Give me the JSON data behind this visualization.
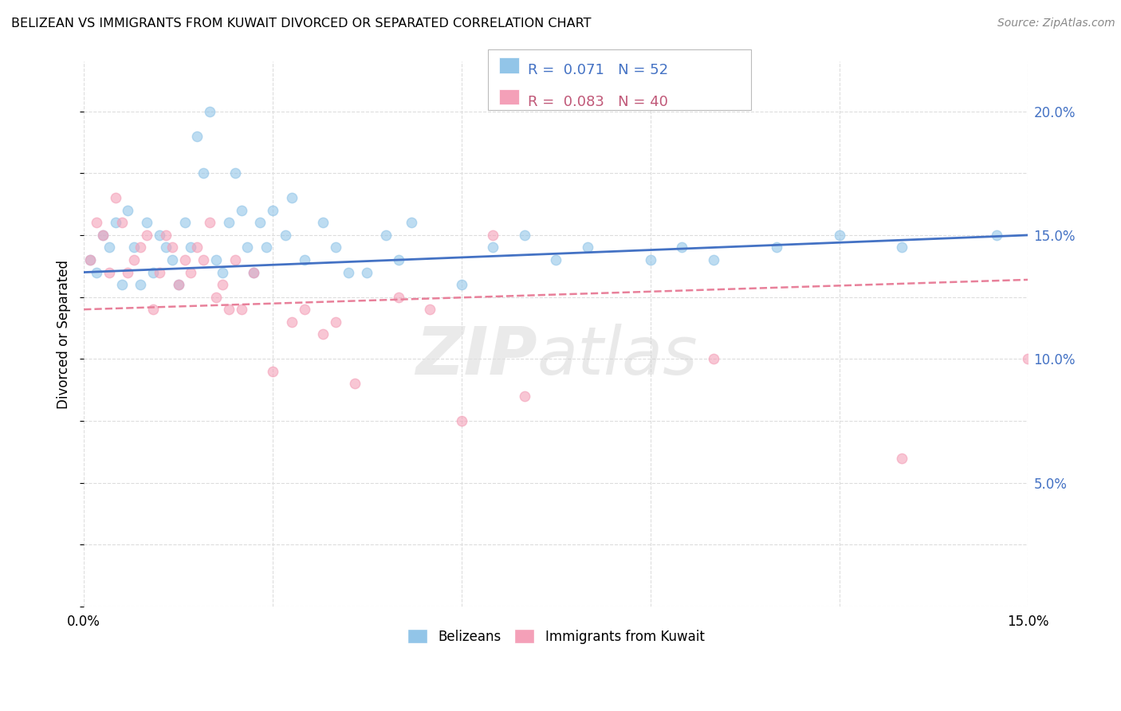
{
  "title": "BELIZEAN VS IMMIGRANTS FROM KUWAIT DIVORCED OR SEPARATED CORRELATION CHART",
  "source_text": "Source: ZipAtlas.com",
  "ylabel": "Divorced or Separated",
  "xlim": [
    0.0,
    0.15
  ],
  "ylim": [
    0.0,
    0.22
  ],
  "x_ticks": [
    0.0,
    0.03,
    0.06,
    0.09,
    0.12,
    0.15
  ],
  "x_tick_labels": [
    "0.0%",
    "",
    "",
    "",
    "",
    "15.0%"
  ],
  "y_ticks_right": [
    0.05,
    0.1,
    0.15,
    0.2
  ],
  "y_tick_labels_right": [
    "5.0%",
    "10.0%",
    "15.0%",
    "20.0%"
  ],
  "belizean_color": "#92C5E8",
  "kuwait_color": "#F4A0B8",
  "trend_blue": "#4472C4",
  "trend_pink": "#E8809A",
  "legend_label_1": "Belizeans",
  "legend_label_2": "Immigrants from Kuwait",
  "belizean_x": [
    0.001,
    0.002,
    0.003,
    0.004,
    0.005,
    0.006,
    0.007,
    0.008,
    0.009,
    0.01,
    0.011,
    0.012,
    0.013,
    0.014,
    0.015,
    0.016,
    0.017,
    0.018,
    0.019,
    0.02,
    0.021,
    0.022,
    0.023,
    0.024,
    0.025,
    0.026,
    0.027,
    0.028,
    0.029,
    0.03,
    0.032,
    0.033,
    0.035,
    0.038,
    0.04,
    0.042,
    0.045,
    0.048,
    0.05,
    0.052,
    0.06,
    0.065,
    0.07,
    0.075,
    0.08,
    0.09,
    0.095,
    0.1,
    0.11,
    0.12,
    0.13,
    0.145
  ],
  "belizean_y": [
    0.14,
    0.135,
    0.15,
    0.145,
    0.155,
    0.13,
    0.16,
    0.145,
    0.13,
    0.155,
    0.135,
    0.15,
    0.145,
    0.14,
    0.13,
    0.155,
    0.145,
    0.19,
    0.175,
    0.2,
    0.14,
    0.135,
    0.155,
    0.175,
    0.16,
    0.145,
    0.135,
    0.155,
    0.145,
    0.16,
    0.15,
    0.165,
    0.14,
    0.155,
    0.145,
    0.135,
    0.135,
    0.15,
    0.14,
    0.155,
    0.13,
    0.145,
    0.15,
    0.14,
    0.145,
    0.14,
    0.145,
    0.14,
    0.145,
    0.15,
    0.145,
    0.15
  ],
  "kuwait_x": [
    0.001,
    0.002,
    0.003,
    0.004,
    0.005,
    0.006,
    0.007,
    0.008,
    0.009,
    0.01,
    0.011,
    0.012,
    0.013,
    0.014,
    0.015,
    0.016,
    0.017,
    0.018,
    0.019,
    0.02,
    0.021,
    0.022,
    0.023,
    0.024,
    0.025,
    0.027,
    0.03,
    0.033,
    0.035,
    0.038,
    0.04,
    0.043,
    0.05,
    0.055,
    0.06,
    0.065,
    0.07,
    0.1,
    0.13,
    0.15
  ],
  "kuwait_y": [
    0.14,
    0.155,
    0.15,
    0.135,
    0.165,
    0.155,
    0.135,
    0.14,
    0.145,
    0.15,
    0.12,
    0.135,
    0.15,
    0.145,
    0.13,
    0.14,
    0.135,
    0.145,
    0.14,
    0.155,
    0.125,
    0.13,
    0.12,
    0.14,
    0.12,
    0.135,
    0.095,
    0.115,
    0.12,
    0.11,
    0.115,
    0.09,
    0.125,
    0.12,
    0.075,
    0.15,
    0.085,
    0.1,
    0.06,
    0.1
  ],
  "trend_blue_start_y": 0.135,
  "trend_blue_end_y": 0.15,
  "trend_pink_start_y": 0.12,
  "trend_pink_end_y": 0.132
}
